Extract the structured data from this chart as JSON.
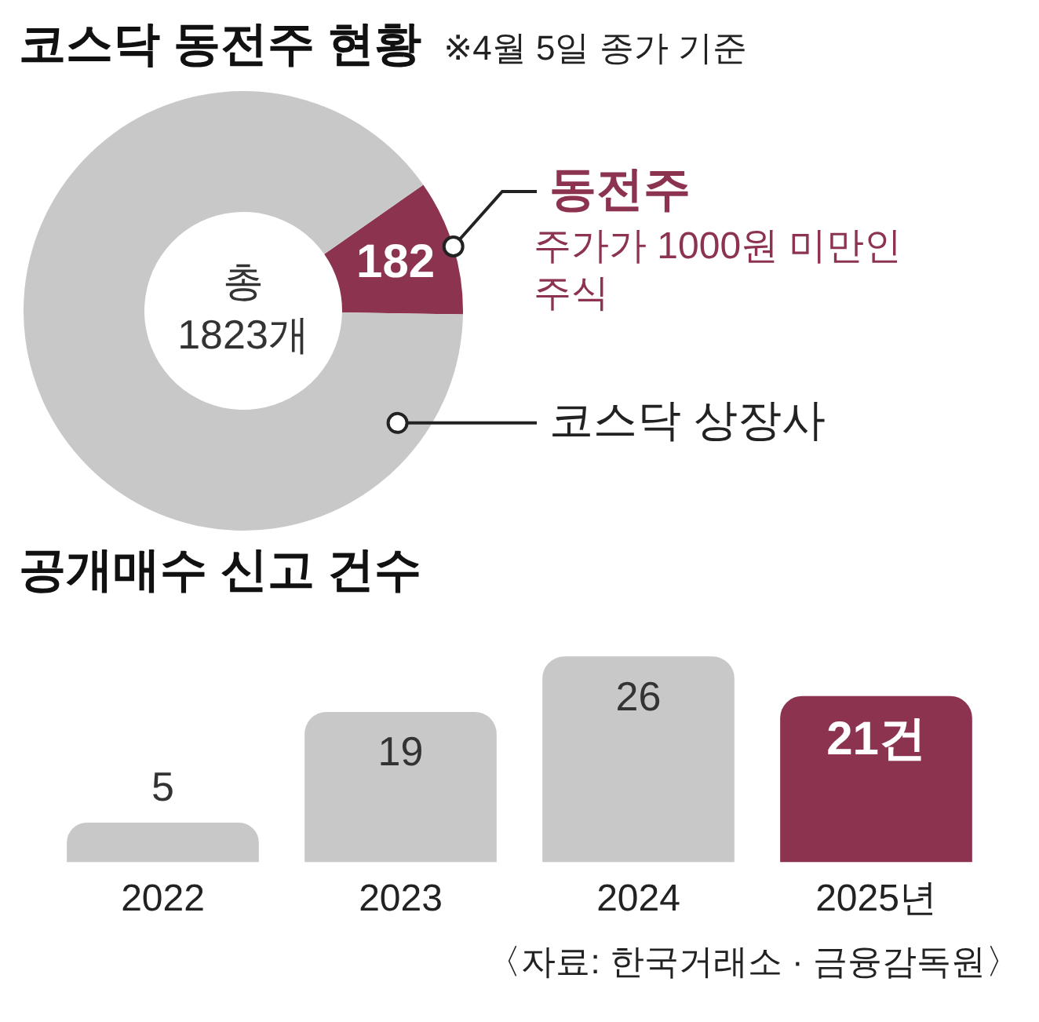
{
  "chart_data": [
    {
      "type": "donut",
      "title": "코스닥 동전주 현황",
      "subtitle": "※4월 5일 종가 기준",
      "categories": [
        "동전주",
        "코스닥 상장사"
      ],
      "values": [
        182,
        1641
      ],
      "colors": [
        "#8c3350",
        "#c8c8c8"
      ],
      "value_labels": [
        "182",
        null
      ],
      "legend": false,
      "annotations": [
        "총 1823개",
        "주가가 1000원 미만인 주식"
      ]
    },
    {
      "type": "bar",
      "title": "공개매수 신고 건수",
      "categories": [
        "2022",
        "2023",
        "2024",
        "2025년"
      ],
      "values": [
        5,
        19,
        26,
        21
      ],
      "colors": [
        "#c8c8c8",
        "#c8c8c8",
        "#c8c8c8",
        "#8c3350"
      ],
      "value_labels": [
        "5",
        "19",
        "26",
        "21건"
      ],
      "grid": false,
      "legend": false,
      "annotations": [
        "〈자료: 한국거래소 · 금융감독원〉"
      ]
    }
  ]
}
